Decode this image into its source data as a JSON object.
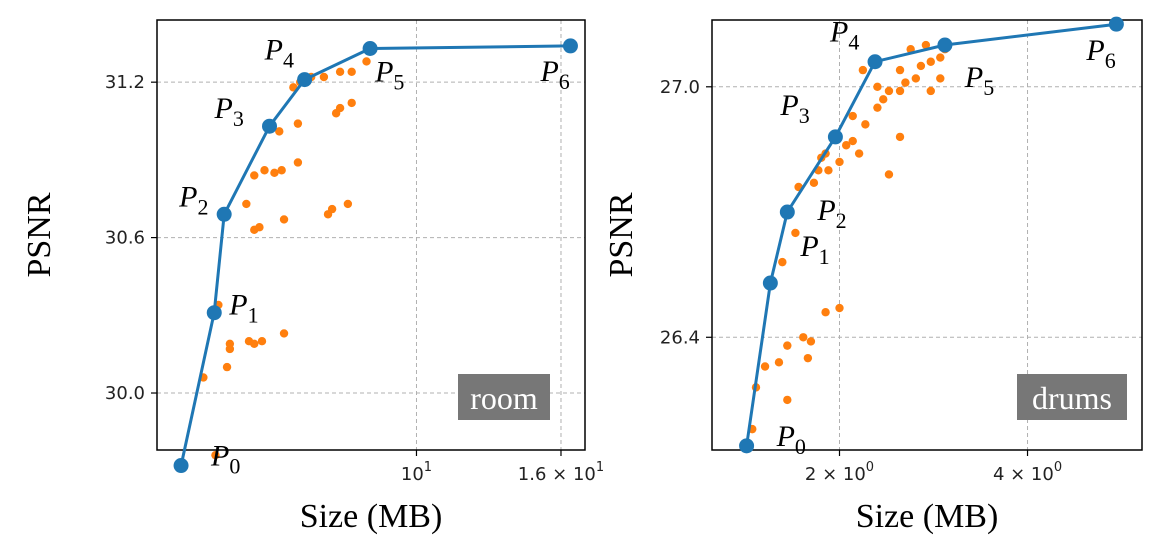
{
  "colors": {
    "frontier": "#1f77b4",
    "candidates": "#ff7f0e",
    "grid": "#b0b0b0",
    "badge": "#777777"
  },
  "chart_data": [
    {
      "type": "scatter",
      "name": "room",
      "badge": "room",
      "xlabel": "Size (MB)",
      "ylabel": "PSNR",
      "xscale": "log",
      "xlim": [
        4.3,
        17.3
      ],
      "ylim": [
        29.78,
        31.44
      ],
      "xticks": [
        {
          "value": 10,
          "label": "10",
          "sup": "1"
        },
        {
          "value": 16,
          "label": "1.6 × 10",
          "sup": "1"
        }
      ],
      "yticks": [
        {
          "value": 30.0,
          "label": "30.0"
        },
        {
          "value": 30.6,
          "label": "30.6"
        },
        {
          "value": 31.2,
          "label": "31.2"
        }
      ],
      "grid": true,
      "series": [
        {
          "name": "pareto_frontier",
          "points": [
            {
              "label": "P",
              "sub": "0",
              "x": 4.65,
              "y": 29.72
            },
            {
              "label": "P",
              "sub": "1",
              "x": 5.18,
              "y": 30.31
            },
            {
              "label": "P",
              "sub": "2",
              "x": 5.35,
              "y": 30.69
            },
            {
              "label": "P",
              "sub": "3",
              "x": 6.2,
              "y": 31.03
            },
            {
              "label": "P",
              "sub": "4",
              "x": 6.95,
              "y": 31.21
            },
            {
              "label": "P",
              "sub": "5",
              "x": 8.6,
              "y": 31.33
            },
            {
              "label": "P",
              "sub": "6",
              "x": 16.5,
              "y": 31.34
            }
          ]
        },
        {
          "name": "candidates",
          "points": [
            {
              "x": 5.0,
              "y": 30.06
            },
            {
              "x": 5.25,
              "y": 30.34
            },
            {
              "x": 5.4,
              "y": 30.1
            },
            {
              "x": 5.45,
              "y": 30.17
            },
            {
              "x": 5.45,
              "y": 30.19
            },
            {
              "x": 5.8,
              "y": 30.2
            },
            {
              "x": 5.9,
              "y": 30.19
            },
            {
              "x": 6.05,
              "y": 30.2
            },
            {
              "x": 6.5,
              "y": 30.23
            },
            {
              "x": 5.2,
              "y": 29.76
            },
            {
              "x": 5.75,
              "y": 30.73
            },
            {
              "x": 5.9,
              "y": 30.63
            },
            {
              "x": 6.0,
              "y": 30.64
            },
            {
              "x": 6.5,
              "y": 30.67
            },
            {
              "x": 7.5,
              "y": 30.69
            },
            {
              "x": 7.6,
              "y": 30.71
            },
            {
              "x": 8.0,
              "y": 30.73
            },
            {
              "x": 5.9,
              "y": 30.84
            },
            {
              "x": 6.1,
              "y": 30.86
            },
            {
              "x": 6.3,
              "y": 30.85
            },
            {
              "x": 6.45,
              "y": 30.86
            },
            {
              "x": 6.8,
              "y": 30.89
            },
            {
              "x": 6.4,
              "y": 31.01
            },
            {
              "x": 6.8,
              "y": 31.04
            },
            {
              "x": 7.7,
              "y": 31.08
            },
            {
              "x": 7.8,
              "y": 31.1
            },
            {
              "x": 8.1,
              "y": 31.12
            },
            {
              "x": 6.7,
              "y": 31.18
            },
            {
              "x": 6.85,
              "y": 31.2
            },
            {
              "x": 7.1,
              "y": 31.22
            },
            {
              "x": 7.4,
              "y": 31.22
            },
            {
              "x": 7.8,
              "y": 31.24
            },
            {
              "x": 8.1,
              "y": 31.24
            },
            {
              "x": 8.5,
              "y": 31.28
            }
          ]
        }
      ]
    },
    {
      "type": "scatter",
      "name": "drums",
      "badge": "drums",
      "xlabel": "Size (MB)",
      "ylabel": "PSNR",
      "xscale": "log",
      "xlim": [
        1.25,
        6.1
      ],
      "ylim": [
        26.13,
        27.16
      ],
      "xticks": [
        {
          "value": 2,
          "label": "2 × 10",
          "sup": "0"
        },
        {
          "value": 4,
          "label": "4 × 10",
          "sup": "0"
        }
      ],
      "yticks": [
        {
          "value": 26.4,
          "label": "26.4"
        },
        {
          "value": 27.0,
          "label": "27.0"
        }
      ],
      "grid": true,
      "series": [
        {
          "name": "pareto_frontier",
          "points": [
            {
              "label": "P",
              "sub": "0",
              "x": 1.42,
              "y": 26.14
            },
            {
              "label": "P",
              "sub": "1",
              "x": 1.55,
              "y": 26.53
            },
            {
              "label": "P",
              "sub": "2",
              "x": 1.65,
              "y": 26.7
            },
            {
              "label": "P",
              "sub": "3",
              "x": 1.97,
              "y": 26.88
            },
            {
              "label": "P",
              "sub": "4",
              "x": 2.28,
              "y": 27.06
            },
            {
              "label": "P",
              "sub": "5",
              "x": 2.95,
              "y": 27.1
            },
            {
              "label": "P",
              "sub": "6",
              "x": 5.55,
              "y": 27.15
            }
          ]
        },
        {
          "name": "candidates",
          "points": [
            {
              "x": 1.45,
              "y": 26.18
            },
            {
              "x": 1.47,
              "y": 26.28
            },
            {
              "x": 1.52,
              "y": 26.33
            },
            {
              "x": 1.6,
              "y": 26.34
            },
            {
              "x": 1.65,
              "y": 26.25
            },
            {
              "x": 1.65,
              "y": 26.38
            },
            {
              "x": 1.75,
              "y": 26.4
            },
            {
              "x": 1.78,
              "y": 26.35
            },
            {
              "x": 1.8,
              "y": 26.39
            },
            {
              "x": 1.9,
              "y": 26.46
            },
            {
              "x": 2.0,
              "y": 26.47
            },
            {
              "x": 1.62,
              "y": 26.58
            },
            {
              "x": 1.7,
              "y": 26.65
            },
            {
              "x": 1.72,
              "y": 26.76
            },
            {
              "x": 1.82,
              "y": 26.77
            },
            {
              "x": 1.85,
              "y": 26.8
            },
            {
              "x": 1.92,
              "y": 26.8
            },
            {
              "x": 1.87,
              "y": 26.83
            },
            {
              "x": 1.9,
              "y": 26.84
            },
            {
              "x": 2.0,
              "y": 26.82
            },
            {
              "x": 2.05,
              "y": 26.86
            },
            {
              "x": 2.1,
              "y": 26.87
            },
            {
              "x": 2.15,
              "y": 26.84
            },
            {
              "x": 2.1,
              "y": 26.93
            },
            {
              "x": 2.2,
              "y": 26.91
            },
            {
              "x": 2.3,
              "y": 26.95
            },
            {
              "x": 2.35,
              "y": 26.97
            },
            {
              "x": 2.4,
              "y": 26.99
            },
            {
              "x": 2.5,
              "y": 26.99
            },
            {
              "x": 2.55,
              "y": 27.01
            },
            {
              "x": 2.65,
              "y": 27.02
            },
            {
              "x": 2.3,
              "y": 27.0
            },
            {
              "x": 2.5,
              "y": 27.04
            },
            {
              "x": 2.7,
              "y": 27.05
            },
            {
              "x": 2.8,
              "y": 27.06
            },
            {
              "x": 2.9,
              "y": 27.07
            },
            {
              "x": 2.95,
              "y": 27.09
            },
            {
              "x": 2.4,
              "y": 26.79
            },
            {
              "x": 2.5,
              "y": 26.88
            },
            {
              "x": 2.8,
              "y": 26.99
            },
            {
              "x": 2.9,
              "y": 27.02
            },
            {
              "x": 2.6,
              "y": 27.09
            },
            {
              "x": 2.75,
              "y": 27.1
            },
            {
              "x": 2.18,
              "y": 27.04
            }
          ]
        }
      ]
    }
  ]
}
